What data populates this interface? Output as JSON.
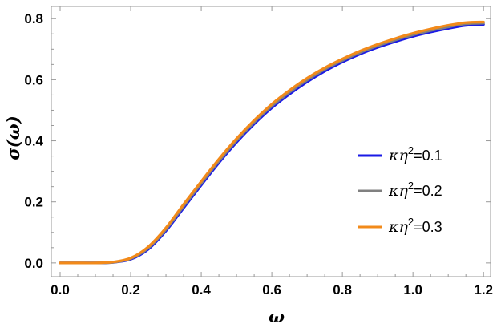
{
  "chart_data": {
    "type": "line",
    "title": "",
    "xlabel": "ω",
    "ylabel": "σ(ω)",
    "xlim": [
      -0.025,
      1.22
    ],
    "ylim": [
      -0.045,
      0.84
    ],
    "xticks": [
      0.0,
      0.2,
      0.4,
      0.6,
      0.8,
      1.0,
      1.2
    ],
    "xtick_labels": [
      "0.0",
      "0.2",
      "0.4",
      "0.6",
      "0.8",
      "1.0",
      "1.2"
    ],
    "yticks": [
      0.0,
      0.2,
      0.4,
      0.6,
      0.8
    ],
    "ytick_labels": [
      "0.0",
      "0.2",
      "0.4",
      "0.6",
      "0.8"
    ],
    "grid": false,
    "legend_position": "center-right",
    "x": [
      0.0,
      0.05,
      0.1,
      0.15,
      0.2,
      0.25,
      0.3,
      0.35,
      0.4,
      0.45,
      0.5,
      0.55,
      0.6,
      0.65,
      0.7,
      0.75,
      0.8,
      0.85,
      0.9,
      0.95,
      1.0,
      1.05,
      1.1,
      1.15,
      1.2
    ],
    "series": [
      {
        "name": "κη²=0.1",
        "name_parts": [
          "κη",
          "2",
          "=0.1"
        ],
        "color": "#1a1ae6",
        "values": [
          0.0,
          0.0,
          0.0,
          0.002,
          0.012,
          0.045,
          0.105,
          0.18,
          0.255,
          0.328,
          0.395,
          0.455,
          0.508,
          0.553,
          0.593,
          0.628,
          0.658,
          0.684,
          0.706,
          0.725,
          0.742,
          0.756,
          0.768,
          0.778,
          0.781
        ]
      },
      {
        "name": "κη²=0.2",
        "name_parts": [
          "κη",
          "2",
          "=0.2"
        ],
        "color": "#808080",
        "values": [
          0.0,
          0.0,
          0.0,
          0.002,
          0.014,
          0.049,
          0.11,
          0.186,
          0.261,
          0.334,
          0.401,
          0.461,
          0.514,
          0.559,
          0.599,
          0.634,
          0.663,
          0.689,
          0.711,
          0.73,
          0.747,
          0.761,
          0.773,
          0.783,
          0.785
        ]
      },
      {
        "name": "κη²=0.3",
        "name_parts": [
          "κη",
          "2",
          "=0.3"
        ],
        "color": "#f28a1a",
        "values": [
          0.0,
          0.0,
          0.0,
          0.003,
          0.016,
          0.053,
          0.115,
          0.192,
          0.267,
          0.34,
          0.407,
          0.467,
          0.52,
          0.565,
          0.605,
          0.639,
          0.668,
          0.694,
          0.716,
          0.735,
          0.752,
          0.766,
          0.778,
          0.787,
          0.789
        ]
      }
    ]
  }
}
